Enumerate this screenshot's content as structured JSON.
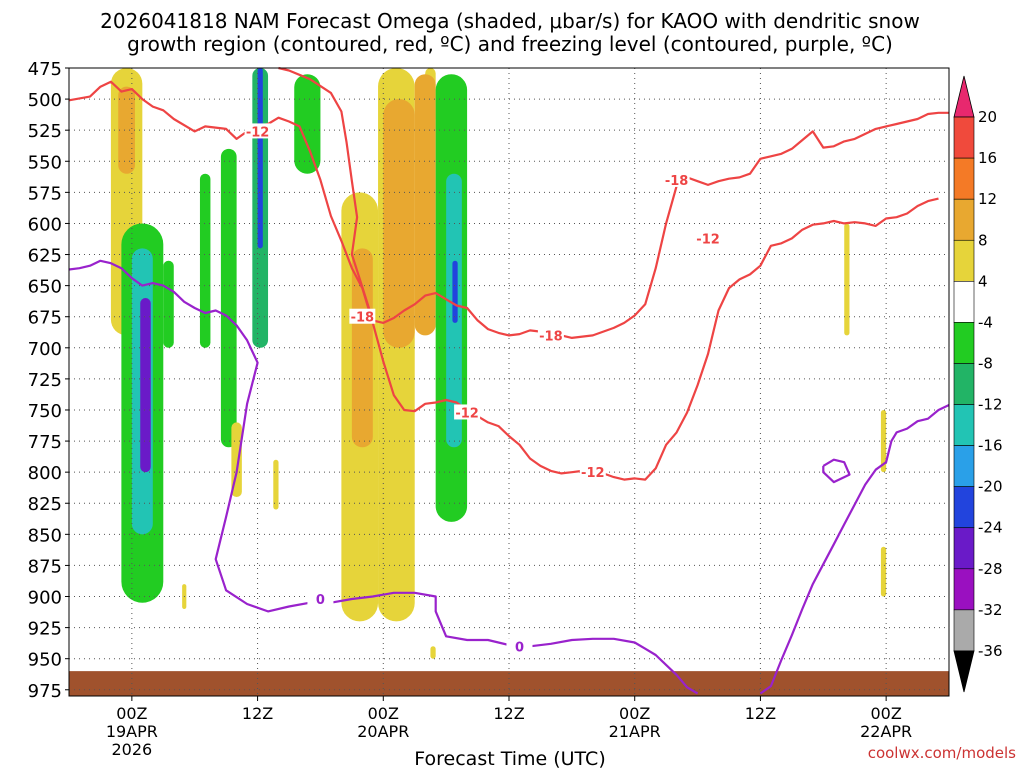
{
  "chart_data": {
    "type": "heatmap",
    "title_line1": "2026041818 NAM Forecast Omega (shaded, μbar/s) for KAOO with dendritic snow",
    "title_line2": "growth region (contoured, red, ºC) and freezing level (contoured, purple, ºC)",
    "xlabel": "Forecast Time (UTC)",
    "credit": "coolwx.com/models",
    "y_levels": [
      "475",
      "500",
      "525",
      "550",
      "575",
      "600",
      "625",
      "650",
      "675",
      "700",
      "725",
      "750",
      "775",
      "800",
      "825",
      "850",
      "875",
      "900",
      "925",
      "950",
      "975"
    ],
    "x_ticks": [
      {
        "hour": 6,
        "label": "00Z",
        "sub": "19APR",
        "sub2": "2026"
      },
      {
        "hour": 18,
        "label": "12Z",
        "sub": "",
        "sub2": ""
      },
      {
        "hour": 30,
        "label": "00Z",
        "sub": "20APR",
        "sub2": ""
      },
      {
        "hour": 42,
        "label": "12Z",
        "sub": "",
        "sub2": ""
      },
      {
        "hour": 54,
        "label": "00Z",
        "sub": "21APR",
        "sub2": ""
      },
      {
        "hour": 66,
        "label": "12Z",
        "sub": "",
        "sub2": ""
      },
      {
        "hour": 78,
        "label": "00Z",
        "sub": "22APR",
        "sub2": ""
      }
    ],
    "x_range": [
      0,
      84
    ],
    "y_range": [
      475,
      980
    ],
    "colorbar": {
      "labels": [
        "20",
        "16",
        "12",
        "8",
        "4",
        "-4",
        "-8",
        "-12",
        "-16",
        "-20",
        "-24",
        "-28",
        "-32",
        "-36"
      ],
      "colors": [
        "#e8286e",
        "#f04a3c",
        "#f47a26",
        "#e8a830",
        "#e6d43a",
        "#ffffff",
        "#22cc22",
        "#22b466",
        "#22c4b4",
        "#2aa0e8",
        "#2244dd",
        "#6a1ac8",
        "#9a10c0",
        "#aaaaaa",
        "#000000"
      ]
    },
    "omega_cells": [
      {
        "h0": 4,
        "h1": 7,
        "p0": 475,
        "p1": 690,
        "v": 5
      },
      {
        "h0": 4.7,
        "h1": 6.3,
        "p0": 490,
        "p1": 560,
        "v": 10
      },
      {
        "h0": 5,
        "h1": 9,
        "p0": 600,
        "p1": 905,
        "v": -6
      },
      {
        "h0": 6,
        "h1": 8,
        "p0": 620,
        "p1": 850,
        "v": -14
      },
      {
        "h0": 6.8,
        "h1": 7.8,
        "p0": 660,
        "p1": 800,
        "v": -26
      },
      {
        "h0": 9,
        "h1": 10,
        "p0": 630,
        "p1": 700,
        "v": -6
      },
      {
        "h0": 12.5,
        "h1": 13.5,
        "p0": 560,
        "p1": 700,
        "v": -6
      },
      {
        "h0": 14.5,
        "h1": 16,
        "p0": 540,
        "p1": 780,
        "v": -6
      },
      {
        "h0": 17.5,
        "h1": 19,
        "p0": 475,
        "p1": 700,
        "v": -8
      },
      {
        "h0": 18,
        "h1": 18.5,
        "p0": 475,
        "p1": 620,
        "v": -22
      },
      {
        "h0": 21.5,
        "h1": 24,
        "p0": 480,
        "p1": 560,
        "v": -6
      },
      {
        "h0": 26,
        "h1": 29.5,
        "p0": 575,
        "p1": 920,
        "v": 5
      },
      {
        "h0": 27,
        "h1": 29,
        "p0": 620,
        "p1": 780,
        "v": 10
      },
      {
        "h0": 29.5,
        "h1": 33,
        "p0": 475,
        "p1": 920,
        "v": 5
      },
      {
        "h0": 30,
        "h1": 33,
        "p0": 500,
        "p1": 700,
        "v": 10
      },
      {
        "h0": 34,
        "h1": 35,
        "p0": 475,
        "p1": 520,
        "v": 5
      },
      {
        "h0": 33,
        "h1": 35,
        "p0": 480,
        "p1": 690,
        "v": 10
      },
      {
        "h0": 35,
        "h1": 38,
        "p0": 480,
        "p1": 840,
        "v": -6
      },
      {
        "h0": 36,
        "h1": 37.5,
        "p0": 560,
        "p1": 780,
        "v": -12
      },
      {
        "h0": 36.6,
        "h1": 37.1,
        "p0": 630,
        "p1": 680,
        "v": -22
      },
      {
        "h0": 19.5,
        "h1": 20,
        "p0": 790,
        "p1": 830,
        "v": 5
      },
      {
        "h0": 15.5,
        "h1": 16.5,
        "p0": 760,
        "p1": 820,
        "v": 5
      },
      {
        "h0": 10.8,
        "h1": 11.2,
        "p0": 890,
        "p1": 910,
        "v": 5
      },
      {
        "h0": 34.5,
        "h1": 35,
        "p0": 940,
        "p1": 950,
        "v": 5
      },
      {
        "h0": 74,
        "h1": 74.5,
        "p0": 600,
        "p1": 690,
        "v": 5
      },
      {
        "h0": 77.5,
        "h1": 78,
        "p0": 750,
        "p1": 800,
        "v": 5
      },
      {
        "h0": 77.5,
        "h1": 78,
        "p0": 860,
        "p1": 900,
        "v": 5
      }
    ],
    "contours": [
      {
        "name": "-12C",
        "color": "#ee4444",
        "label": "-12",
        "points": [
          [
            0,
            501
          ],
          [
            2,
            498
          ],
          [
            3,
            490
          ],
          [
            4,
            486
          ],
          [
            5,
            494
          ],
          [
            6,
            492
          ],
          [
            7,
            500
          ],
          [
            8,
            506
          ],
          [
            9,
            509
          ],
          [
            10,
            516
          ],
          [
            12,
            526
          ],
          [
            13,
            522
          ],
          [
            15,
            524
          ],
          [
            16,
            532
          ],
          [
            17,
            526
          ],
          [
            18,
            522
          ],
          [
            19,
            520
          ],
          [
            20,
            515
          ],
          [
            21,
            518
          ],
          [
            22,
            522
          ],
          [
            23,
            542
          ],
          [
            24,
            565
          ],
          [
            25,
            594
          ],
          [
            26,
            614
          ],
          [
            27,
            636
          ],
          [
            28,
            652
          ],
          [
            29,
            680
          ],
          [
            30,
            711
          ],
          [
            31,
            738
          ],
          [
            32,
            750
          ],
          [
            33,
            751
          ],
          [
            34,
            745
          ],
          [
            35,
            744
          ],
          [
            36,
            742
          ],
          [
            37,
            744
          ],
          [
            38,
            750
          ],
          [
            39,
            755
          ],
          [
            40,
            760
          ],
          [
            41,
            763
          ],
          [
            42,
            771
          ],
          [
            43,
            778
          ],
          [
            44,
            789
          ],
          [
            45,
            795
          ],
          [
            46,
            799
          ],
          [
            47,
            801
          ],
          [
            48,
            800
          ],
          [
            49,
            799
          ],
          [
            50,
            800
          ],
          [
            51,
            801
          ],
          [
            52,
            804
          ],
          [
            53,
            806
          ],
          [
            54,
            805
          ],
          [
            55,
            806
          ],
          [
            56,
            797
          ],
          [
            57,
            778
          ],
          [
            58,
            768
          ],
          [
            59,
            752
          ],
          [
            60,
            730
          ],
          [
            61,
            705
          ],
          [
            62,
            670
          ],
          [
            63,
            652
          ],
          [
            64,
            645
          ],
          [
            65,
            641
          ],
          [
            66,
            634
          ],
          [
            67,
            618
          ],
          [
            68,
            616
          ],
          [
            69,
            612
          ],
          [
            70,
            605
          ],
          [
            71,
            601
          ],
          [
            72,
            600
          ],
          [
            73,
            598
          ],
          [
            74,
            600
          ],
          [
            75,
            599
          ],
          [
            76,
            600
          ],
          [
            77,
            602
          ],
          [
            78,
            596
          ],
          [
            79,
            595
          ],
          [
            80,
            592
          ],
          [
            81,
            586
          ],
          [
            82,
            582
          ],
          [
            83,
            580
          ]
        ]
      },
      {
        "name": "-18C",
        "color": "#ee4444",
        "label": "-18",
        "points": [
          [
            20,
            475
          ],
          [
            21,
            477
          ],
          [
            23,
            484
          ],
          [
            25,
            495
          ],
          [
            26,
            510
          ],
          [
            26.5,
            535
          ],
          [
            27,
            566
          ],
          [
            27.5,
            595
          ],
          [
            27,
            625
          ],
          [
            28,
            651
          ],
          [
            29,
            678
          ],
          [
            30,
            680
          ],
          [
            31,
            676
          ],
          [
            32,
            670
          ],
          [
            33,
            665
          ],
          [
            34,
            658
          ],
          [
            35,
            656
          ],
          [
            36,
            661
          ],
          [
            37,
            666
          ],
          [
            38,
            668
          ],
          [
            39,
            678
          ],
          [
            40,
            685
          ],
          [
            41,
            688
          ],
          [
            42,
            690
          ],
          [
            43,
            689
          ],
          [
            44,
            686
          ],
          [
            45,
            687
          ],
          [
            46,
            688
          ],
          [
            47,
            690
          ],
          [
            48,
            692
          ],
          [
            49,
            691
          ],
          [
            50,
            690
          ],
          [
            51,
            687
          ],
          [
            52,
            684
          ],
          [
            53,
            680
          ],
          [
            54,
            674
          ],
          [
            55,
            665
          ],
          [
            56,
            636
          ],
          [
            57,
            600
          ],
          [
            58,
            570
          ],
          [
            59,
            563
          ],
          [
            60,
            566
          ],
          [
            61,
            569
          ],
          [
            62,
            566
          ],
          [
            63,
            564
          ],
          [
            64,
            563
          ],
          [
            65,
            560
          ],
          [
            66,
            548
          ],
          [
            67,
            546
          ],
          [
            68,
            544
          ],
          [
            69,
            540
          ],
          [
            70,
            533
          ],
          [
            71,
            526
          ],
          [
            72,
            539
          ],
          [
            73,
            538
          ],
          [
            74,
            534
          ],
          [
            75,
            532
          ],
          [
            76,
            528
          ],
          [
            77,
            524
          ],
          [
            78,
            522
          ],
          [
            79,
            520
          ],
          [
            80,
            518
          ],
          [
            81,
            516
          ],
          [
            82,
            512
          ],
          [
            83,
            511
          ],
          [
            84,
            511
          ]
        ]
      },
      {
        "name": "0C",
        "color": "#9922cc",
        "label": "0",
        "points": [
          [
            0,
            637
          ],
          [
            1,
            636
          ],
          [
            2,
            634
          ],
          [
            3,
            630
          ],
          [
            4,
            632
          ],
          [
            5,
            636
          ],
          [
            6,
            644
          ],
          [
            7,
            650
          ],
          [
            8,
            648
          ],
          [
            9,
            650
          ],
          [
            10,
            655
          ],
          [
            11,
            663
          ],
          [
            12,
            668
          ],
          [
            13,
            672
          ],
          [
            14,
            670
          ],
          [
            15,
            674
          ],
          [
            16,
            682
          ],
          [
            17,
            694
          ],
          [
            18,
            712
          ],
          [
            17,
            745
          ],
          [
            16,
            800
          ],
          [
            15,
            836
          ],
          [
            14,
            870
          ],
          [
            15,
            895
          ],
          [
            17,
            906
          ],
          [
            19,
            912
          ],
          [
            21,
            908
          ],
          [
            23,
            905
          ],
          [
            25,
            905
          ],
          [
            27,
            902
          ],
          [
            29,
            900
          ],
          [
            31,
            897
          ],
          [
            33,
            897
          ],
          [
            35,
            900
          ],
          [
            35,
            912
          ],
          [
            36,
            932
          ],
          [
            38,
            935
          ],
          [
            40,
            935
          ],
          [
            42,
            939
          ],
          [
            44,
            940
          ],
          [
            46,
            938
          ],
          [
            48,
            935
          ],
          [
            50,
            934
          ],
          [
            52,
            934
          ],
          [
            54,
            937
          ],
          [
            55,
            942
          ],
          [
            56,
            947
          ],
          [
            57,
            955
          ],
          [
            58,
            963
          ],
          [
            59,
            973
          ],
          [
            60,
            978
          ]
        ]
      },
      {
        "name": "0C-right",
        "color": "#9922cc",
        "label": "",
        "points": [
          [
            66,
            978
          ],
          [
            67,
            972
          ],
          [
            68,
            951
          ],
          [
            69,
            931
          ],
          [
            70,
            910
          ],
          [
            71,
            890
          ],
          [
            72,
            874
          ],
          [
            73,
            858
          ],
          [
            74,
            842
          ],
          [
            75,
            826
          ],
          [
            76,
            810
          ],
          [
            77,
            798
          ],
          [
            78,
            792
          ],
          [
            78.5,
            775
          ],
          [
            79,
            768
          ],
          [
            80,
            765
          ],
          [
            81,
            759
          ],
          [
            82,
            757
          ],
          [
            83,
            750
          ],
          [
            84,
            746
          ]
        ]
      },
      {
        "name": "0C-loop",
        "color": "#9922cc",
        "label": "",
        "points": [
          [
            72,
            795
          ],
          [
            73,
            790
          ],
          [
            74,
            792
          ],
          [
            74.5,
            802
          ],
          [
            73,
            808
          ],
          [
            72,
            800
          ],
          [
            72,
            795
          ]
        ]
      }
    ],
    "ground_level_hpa": 960
  }
}
